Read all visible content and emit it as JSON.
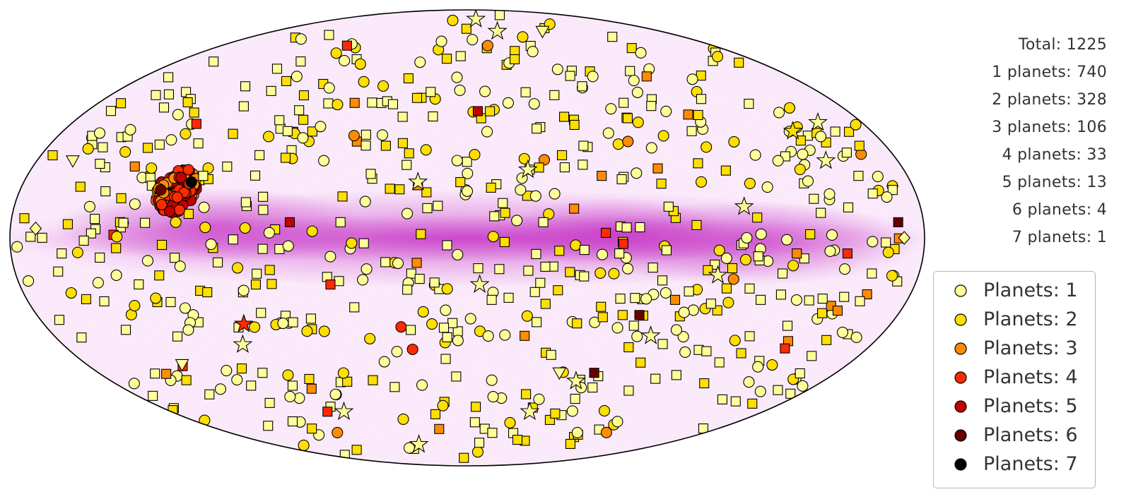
{
  "stats": {
    "total": "Total: 1225",
    "lines": [
      "1 planets: 740",
      "2 planets: 328",
      "3 planets: 106",
      "4 planets: 33",
      "5 planets: 13",
      "6 planets: 4",
      "7 planets: 1"
    ]
  },
  "legend": {
    "items": [
      {
        "label": "Planets: 1",
        "color": "#ffff99"
      },
      {
        "label": "Planets: 2",
        "color": "#ffdf00"
      },
      {
        "label": "Planets: 3",
        "color": "#ff8c00"
      },
      {
        "label": "Planets: 4",
        "color": "#ff2a00"
      },
      {
        "label": "Planets: 5",
        "color": "#c30000"
      },
      {
        "label": "Planets: 6",
        "color": "#680000"
      },
      {
        "label": "Planets: 7",
        "color": "#000000"
      }
    ]
  },
  "chart_data": {
    "type": "scatter",
    "projection": "mollweide",
    "background": "milky-way density map (magenta)",
    "grid": false,
    "legend_position": "lower-right",
    "marker_shapes": [
      "circle",
      "square",
      "triangle-down",
      "star",
      "diamond"
    ],
    "series": [
      {
        "name": "Planets: 1",
        "count": 740
      },
      {
        "name": "Planets: 2",
        "count": 328
      },
      {
        "name": "Planets: 3",
        "count": 106
      },
      {
        "name": "Planets: 4",
        "count": 33
      },
      {
        "name": "Planets: 5",
        "count": 13
      },
      {
        "name": "Planets: 6",
        "count": 4
      },
      {
        "name": "Planets: 7",
        "count": 1
      }
    ],
    "total": 1225,
    "dense_cluster": {
      "lon_deg": -117,
      "lat_deg": 15
    },
    "points": [
      {
        "lon": -129,
        "lat": 32,
        "p": 1,
        "m": "circle"
      },
      {
        "lon": -108,
        "lat": 20,
        "p": 1,
        "m": "square"
      },
      {
        "lon": -150,
        "lat": 10,
        "p": 1,
        "m": "circle"
      },
      {
        "lon": -160,
        "lat": -5,
        "p": 1,
        "m": "square"
      },
      {
        "lon": -140,
        "lat": -12,
        "p": 1,
        "m": "circle"
      },
      {
        "lon": -120,
        "lat": -30,
        "p": 1,
        "m": "circle"
      },
      {
        "lon": -100,
        "lat": -45,
        "p": 1,
        "m": "square"
      },
      {
        "lon": -95,
        "lat": 55,
        "p": 1,
        "m": "circle"
      },
      {
        "lon": -70,
        "lat": 62,
        "p": 1,
        "m": "square"
      },
      {
        "lon": -80,
        "lat": 35,
        "p": 1,
        "m": "square"
      },
      {
        "lon": -60,
        "lat": 25,
        "p": 1,
        "m": "circle"
      },
      {
        "lon": -50,
        "lat": 5,
        "p": 1,
        "m": "square"
      },
      {
        "lon": -40,
        "lat": -10,
        "p": 1,
        "m": "circle"
      },
      {
        "lon": -30,
        "lat": 40,
        "p": 1,
        "m": "square"
      },
      {
        "lon": -20,
        "lat": 70,
        "p": 1,
        "m": "circle"
      },
      {
        "lon": -10,
        "lat": -40,
        "p": 1,
        "m": "square"
      },
      {
        "lon": 0,
        "lat": 15,
        "p": 1,
        "m": "circle"
      },
      {
        "lon": 10,
        "lat": -20,
        "p": 1,
        "m": "square"
      },
      {
        "lon": 20,
        "lat": 45,
        "p": 1,
        "m": "circle"
      },
      {
        "lon": 30,
        "lat": 5,
        "p": 1,
        "m": "square"
      },
      {
        "lon": 40,
        "lat": -55,
        "p": 1,
        "m": "circle"
      },
      {
        "lon": 50,
        "lat": 30,
        "p": 1,
        "m": "square"
      },
      {
        "lon": 60,
        "lat": -5,
        "p": 1,
        "m": "square"
      },
      {
        "lon": 70,
        "lat": 55,
        "p": 1,
        "m": "circle"
      },
      {
        "lon": 80,
        "lat": 10,
        "p": 1,
        "m": "square"
      },
      {
        "lon": 90,
        "lat": -30,
        "p": 1,
        "m": "circle"
      },
      {
        "lon": 100,
        "lat": 35,
        "p": 1,
        "m": "square"
      },
      {
        "lon": 110,
        "lat": 0,
        "p": 1,
        "m": "circle"
      },
      {
        "lon": 120,
        "lat": -20,
        "p": 1,
        "m": "square"
      },
      {
        "lon": 130,
        "lat": 25,
        "p": 1,
        "m": "circle"
      },
      {
        "lon": 140,
        "lat": 8,
        "p": 1,
        "m": "square"
      },
      {
        "lon": 150,
        "lat": -10,
        "p": 1,
        "m": "circle"
      },
      {
        "lon": 160,
        "lat": 20,
        "p": 1,
        "m": "square"
      },
      {
        "lon": -170,
        "lat": 3,
        "p": 1,
        "m": "diamond"
      },
      {
        "lon": 172,
        "lat": 0,
        "p": 1,
        "m": "diamond"
      },
      {
        "lon": -165,
        "lat": 25,
        "p": 1,
        "m": "triangle-down"
      },
      {
        "lon": -75,
        "lat": -60,
        "p": 1,
        "m": "star"
      },
      {
        "lon": -45,
        "lat": -75,
        "p": 1,
        "m": "star"
      },
      {
        "lon": 5,
        "lat": -15,
        "p": 1,
        "m": "star"
      },
      {
        "lon": -20,
        "lat": 18,
        "p": 1,
        "m": "star"
      },
      {
        "lon": 25,
        "lat": 22,
        "p": 1,
        "m": "star"
      },
      {
        "lon": 110,
        "lat": 10,
        "p": 1,
        "m": "star"
      },
      {
        "lon": 150,
        "lat": 25,
        "p": 1,
        "m": "star"
      },
      {
        "lon": 160,
        "lat": 38,
        "p": 1,
        "m": "star"
      },
      {
        "lon": 100,
        "lat": -12,
        "p": 1,
        "m": "star"
      },
      {
        "lon": 80,
        "lat": -32,
        "p": 1,
        "m": "star"
      },
      {
        "lon": 55,
        "lat": -48,
        "p": 1,
        "m": "star"
      },
      {
        "lon": 38,
        "lat": -60,
        "p": 1,
        "m": "star"
      },
      {
        "lon": 28,
        "lat": 75,
        "p": 1,
        "m": "star"
      },
      {
        "lon": 12,
        "lat": 82,
        "p": 1,
        "m": "star"
      },
      {
        "lon": -100,
        "lat": -35,
        "p": 1,
        "m": "star"
      },
      {
        "lon": 70,
        "lat": 75,
        "p": 1,
        "m": "triangle-down"
      },
      {
        "lon": 45,
        "lat": -45,
        "p": 1,
        "m": "triangle-down"
      },
      {
        "lon": -135,
        "lat": -42,
        "p": 1,
        "m": "triangle-down"
      },
      {
        "lon": -65,
        "lat": 60,
        "p": 2,
        "m": "circle"
      },
      {
        "lon": -35,
        "lat": 30,
        "p": 2,
        "m": "square"
      },
      {
        "lon": 15,
        "lat": 8,
        "p": 2,
        "m": "square"
      },
      {
        "lon": 45,
        "lat": 40,
        "p": 2,
        "m": "square"
      },
      {
        "lon": 65,
        "lat": -25,
        "p": 2,
        "m": "square"
      },
      {
        "lon": 95,
        "lat": 18,
        "p": 2,
        "m": "circle"
      },
      {
        "lon": 125,
        "lat": -38,
        "p": 2,
        "m": "square"
      },
      {
        "lon": -85,
        "lat": -15,
        "p": 2,
        "m": "square"
      },
      {
        "lon": -115,
        "lat": 5,
        "p": 2,
        "m": "circle"
      },
      {
        "lon": 5,
        "lat": -58,
        "p": 2,
        "m": "square"
      },
      {
        "lon": 145,
        "lat": 35,
        "p": 2,
        "m": "star"
      },
      {
        "lon": -15,
        "lat": -28,
        "p": 2,
        "m": "circle"
      },
      {
        "lon": 30,
        "lat": 62,
        "p": 2,
        "m": "square"
      },
      {
        "lon": -55,
        "lat": 45,
        "p": 3,
        "m": "square"
      },
      {
        "lon": 15,
        "lat": 68,
        "p": 3,
        "m": "circle"
      },
      {
        "lon": 55,
        "lat": 20,
        "p": 3,
        "m": "square"
      },
      {
        "lon": 130,
        "lat": -5,
        "p": 3,
        "m": "square"
      },
      {
        "lon": 25,
        "lat": -32,
        "p": 3,
        "m": "square"
      },
      {
        "lon": -20,
        "lat": -8,
        "p": 3,
        "m": "square"
      },
      {
        "lon": 100,
        "lat": 55,
        "p": 3,
        "m": "square"
      },
      {
        "lon": 85,
        "lat": -20,
        "p": 3,
        "m": "square"
      },
      {
        "lon": -88,
        "lat": 68,
        "p": 4,
        "m": "square"
      },
      {
        "lon": -55,
        "lat": -15,
        "p": 4,
        "m": "square"
      },
      {
        "lon": 150,
        "lat": -5,
        "p": 4,
        "m": "square"
      },
      {
        "lon": -95,
        "lat": -28,
        "p": 4,
        "m": "star"
      },
      {
        "lon": -115,
        "lat": 22,
        "p": 4,
        "m": "circle"
      },
      {
        "lon": -70,
        "lat": 5,
        "p": 5,
        "m": "square"
      },
      {
        "lon": -85,
        "lat": -60,
        "p": 4,
        "m": "square"
      },
      {
        "lon": 5,
        "lat": 42,
        "p": 5,
        "m": "square"
      },
      {
        "lon": 72,
        "lat": -25,
        "p": 6,
        "m": "square"
      },
      {
        "lon": 62,
        "lat": -45,
        "p": 6,
        "m": "square"
      },
      {
        "lon": 170,
        "lat": 5,
        "p": 6,
        "m": "square"
      },
      {
        "lon": -112,
        "lat": 18,
        "p": 7,
        "m": "circle"
      }
    ]
  }
}
